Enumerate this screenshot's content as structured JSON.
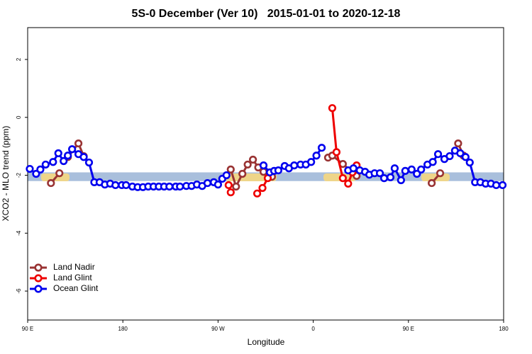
{
  "chart_data": {
    "type": "line",
    "title": "5S-0 December (Ver 10)   2015-01-01 to 2020-12-18",
    "x_label": "Longitude",
    "y_label": "XCO2 - MLO trend (ppm)",
    "xlim": [
      90,
      540
    ],
    "ylim": [
      -7,
      3.1
    ],
    "xticks": [
      {
        "value": 90,
        "label": "90 E"
      },
      180,
      {
        "value": 270,
        "label": "90 W"
      },
      {
        "value": 360,
        "label": "0"
      },
      {
        "value": 450,
        "label": "90 E"
      },
      {
        "value": 540,
        "label": "180"
      }
    ],
    "yticks": [
      -6,
      -4,
      -2,
      0,
      2
    ],
    "band_range": [
      -2.2,
      -1.9
    ],
    "band_color": "#a9bfdc",
    "legend": "bottom-left",
    "series": [
      {
        "name": "Land Nadir",
        "color": "#993333",
        "x": [
          112,
          120,
          null,
          128,
          138,
          143,
          null,
          282,
          287,
          293,
          298,
          303,
          308,
          313,
          321,
          null,
          374,
          378,
          388,
          401,
          null,
          472,
          480,
          null,
          497,
          502
        ],
        "values": [
          -2.27,
          -1.93,
          null,
          -1.37,
          -0.9,
          -1.34,
          null,
          -1.8,
          -2.39,
          -1.95,
          -1.63,
          -1.46,
          -1.73,
          -1.88,
          -2.05,
          null,
          -1.39,
          -1.32,
          -1.61,
          -2.02,
          null,
          -2.27,
          -1.93,
          null,
          -0.9,
          -1.32
        ]
      },
      {
        "name": "Land Glint",
        "color": "#ee0000",
        "x": [
          280,
          282,
          null,
          307,
          312,
          317,
          null,
          378,
          382,
          388,
          393,
          397,
          401
        ],
        "values": [
          -2.34,
          -2.59,
          null,
          -2.63,
          -2.44,
          -2.1,
          null,
          0.32,
          -1.2,
          -2.1,
          -2.29,
          -1.9,
          -1.66
        ]
      },
      {
        "name": "Ocean Glint",
        "color": "#0000ee",
        "x": [
          92,
          98,
          102,
          107,
          114,
          119,
          124,
          128,
          132,
          138,
          143,
          148,
          153,
          158,
          163,
          168,
          173,
          179,
          183,
          189,
          194,
          199,
          204,
          209,
          214,
          219,
          224,
          230,
          234,
          240,
          245,
          250,
          255,
          260,
          266,
          270,
          274,
          278,
          null,
          313,
          319,
          323,
          327,
          333,
          337,
          342,
          348,
          353,
          358,
          363,
          368,
          null,
          393,
          398,
          404,
          409,
          413,
          418,
          423,
          427,
          433,
          437,
          443,
          447,
          453,
          458,
          462,
          468,
          473,
          478,
          484,
          489,
          494,
          499,
          504,
          508,
          513,
          518,
          523,
          528,
          533,
          539
        ],
        "values": [
          -1.78,
          -1.95,
          -1.8,
          -1.63,
          -1.54,
          -1.24,
          -1.51,
          -1.32,
          -1.1,
          -1.27,
          -1.37,
          -1.56,
          -2.24,
          -2.24,
          -2.32,
          -2.29,
          -2.34,
          -2.34,
          -2.34,
          -2.39,
          -2.41,
          -2.41,
          -2.39,
          -2.39,
          -2.39,
          -2.39,
          -2.39,
          -2.39,
          -2.39,
          -2.37,
          -2.37,
          -2.32,
          -2.37,
          -2.27,
          -2.24,
          -2.32,
          -2.12,
          -2.0,
          null,
          -1.66,
          -1.9,
          -1.85,
          -1.83,
          -1.68,
          -1.76,
          -1.66,
          -1.63,
          -1.63,
          -1.54,
          -1.32,
          -1.05,
          null,
          -1.83,
          -1.76,
          -1.83,
          -1.88,
          -1.98,
          -1.93,
          -1.93,
          -2.1,
          -2.07,
          -1.76,
          -2.17,
          -1.85,
          -1.8,
          -1.95,
          -1.8,
          -1.63,
          -1.54,
          -1.27,
          -1.44,
          -1.34,
          -1.15,
          -1.24,
          -1.37,
          -1.56,
          -2.24,
          -2.24,
          -2.29,
          -2.29,
          -2.34,
          -2.34
        ]
      }
    ]
  }
}
